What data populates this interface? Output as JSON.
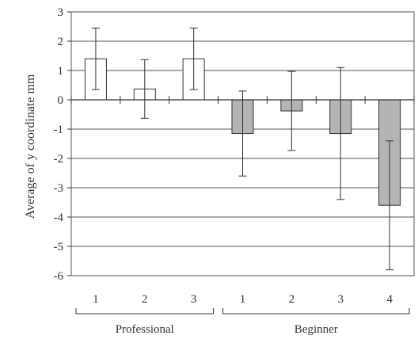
{
  "chart_data": {
    "type": "bar",
    "ylabel": "Average of y coordinate mm",
    "xlabel": "",
    "title": "",
    "ylim": [
      -6,
      3
    ],
    "yticks": [
      3,
      2,
      1,
      0,
      -1,
      -2,
      -3,
      -4,
      -5,
      -6
    ],
    "grid": true,
    "legend": "none",
    "categories": [
      "1",
      "2",
      "3",
      "1",
      "2",
      "3",
      "4"
    ],
    "groups": [
      {
        "label": "Professional",
        "categories": [
          "1",
          "2",
          "3"
        ],
        "color": "#ffffff"
      },
      {
        "label": "Beginner",
        "categories": [
          "1",
          "2",
          "3",
          "4"
        ],
        "color": "#b4b4b4"
      }
    ],
    "values": [
      1.4,
      0.37,
      1.4,
      -1.15,
      -0.38,
      -1.15,
      -3.6
    ],
    "error": [
      1.05,
      1.0,
      1.05,
      1.45,
      1.35,
      2.25,
      2.2
    ],
    "colors": {
      "positive_bar": "#ffffff",
      "negative_bar": "#b4b4b4",
      "stroke": "#333333",
      "grid": "#555555"
    }
  }
}
